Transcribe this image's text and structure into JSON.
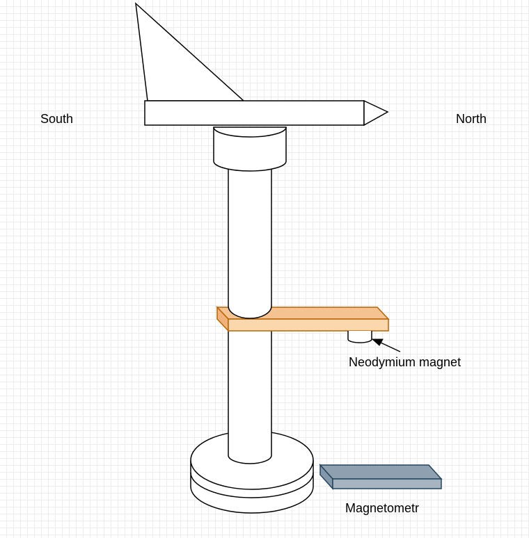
{
  "labels": {
    "south": "South",
    "north": "North",
    "magnet": "Neodymium magnet",
    "magnetometer": "Magnetometr"
  },
  "colors": {
    "stroke": "#000000",
    "fill": "#ffffff",
    "arm_fill": "#fad7ac",
    "arm_top": "#f5c392",
    "arm_stroke": "#b46504",
    "sensor_fill": "#a7b5c2",
    "sensor_top": "#8fa0b0",
    "sensor_stroke": "#23445d",
    "grid": "#ececec"
  }
}
